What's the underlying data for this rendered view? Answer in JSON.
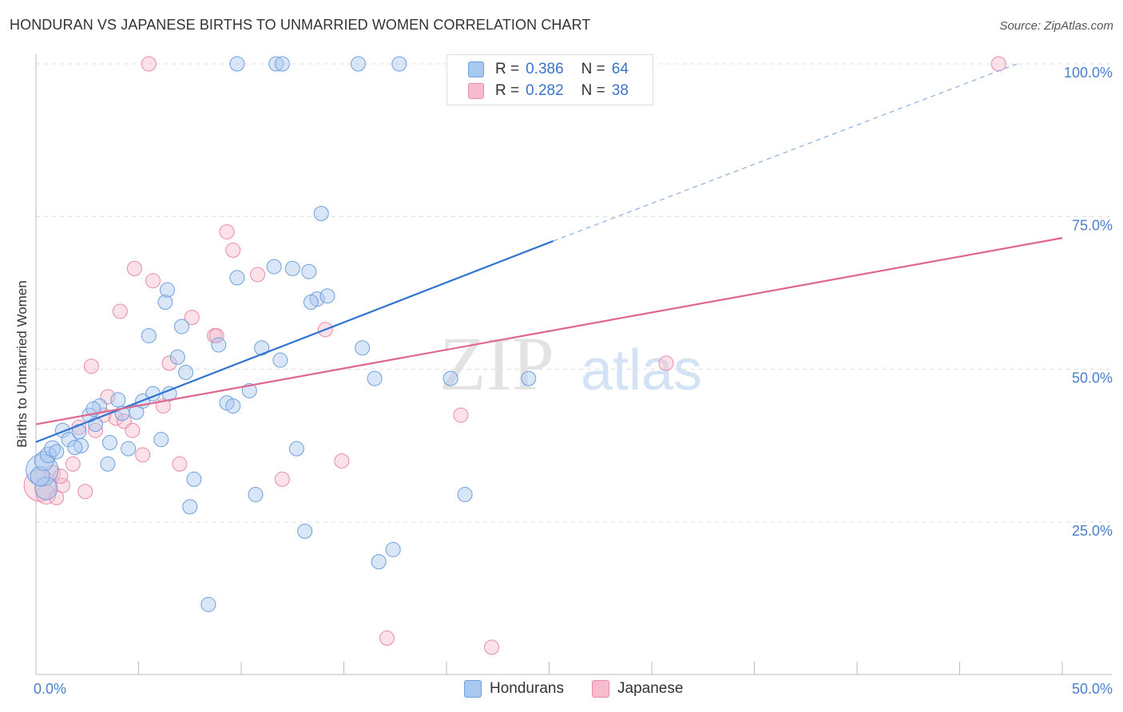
{
  "header": {
    "title": "HONDURAN VS JAPANESE BIRTHS TO UNMARRIED WOMEN CORRELATION CHART",
    "source": "Source: ZipAtlas.com"
  },
  "legend": {
    "rows": [
      {
        "r_label": "R =",
        "r_value": "0.386",
        "n_label": "N =",
        "n_value": "64"
      },
      {
        "r_label": "R =",
        "r_value": "0.282",
        "n_label": "N =",
        "n_value": "38"
      }
    ],
    "series": [
      "Hondurans",
      "Japanese"
    ]
  },
  "watermark": {
    "zip": "ZIP",
    "atlas": "atlas"
  },
  "colors": {
    "hondurans_fill": "#a8c8f0",
    "hondurans_stroke": "#6f9fdc",
    "hondurans_line": "#2f74d0",
    "japanese_fill": "#f6bccd",
    "japanese_stroke": "#e98aa9",
    "japanese_line": "#e0668e",
    "tick_text": "#4a7fcc"
  },
  "chart_data": {
    "type": "scatter",
    "title": "HONDURAN VS JAPANESE BIRTHS TO UNMARRIED WOMEN CORRELATION CHART",
    "xlabel": "",
    "ylabel": "Births to Unmarried Women",
    "xlim": [
      0,
      50
    ],
    "ylim": [
      0,
      105
    ],
    "x_tick_labels": [
      "0.0%",
      "50.0%"
    ],
    "y_ticks": [
      25,
      50,
      75,
      100
    ],
    "y_tick_labels": [
      "25.0%",
      "50.0%",
      "75.0%",
      "100.0%"
    ],
    "grid": true,
    "series": [
      {
        "name": "Hondurans",
        "r": 0.386,
        "n": 64,
        "trend": {
          "x0": 0,
          "y0": 38.1,
          "x1": 25.2,
          "y1": 71.0,
          "dashed_to": {
            "x": 47.8,
            "y": 100.0
          }
        },
        "points": [
          [
            0.3,
            33.5,
            20
          ],
          [
            0.5,
            30.5,
            14
          ],
          [
            0.2,
            32.5,
            12
          ],
          [
            0.4,
            35.0,
            12
          ],
          [
            0.6,
            36.0,
            10
          ],
          [
            0.8,
            37.0,
            10
          ],
          [
            1.0,
            36.5,
            9
          ],
          [
            1.3,
            40.0,
            9
          ],
          [
            1.6,
            38.5,
            9
          ],
          [
            2.2,
            37.5,
            9
          ],
          [
            2.6,
            42.5,
            9
          ],
          [
            2.9,
            41.0,
            9
          ],
          [
            3.1,
            44.0,
            9
          ],
          [
            1.9,
            37.2,
            9
          ],
          [
            2.1,
            39.8,
            9
          ],
          [
            3.6,
            38.0,
            9
          ],
          [
            4.2,
            42.8,
            9
          ],
          [
            4.0,
            45.0,
            9
          ],
          [
            3.5,
            34.5,
            9
          ],
          [
            4.5,
            37.0,
            9
          ],
          [
            4.9,
            43.0,
            9
          ],
          [
            5.2,
            44.8,
            9
          ],
          [
            5.7,
            46.0,
            9
          ],
          [
            6.1,
            38.5,
            9
          ],
          [
            6.5,
            46.0,
            9
          ],
          [
            6.9,
            52.0,
            9
          ],
          [
            7.3,
            49.5,
            9
          ],
          [
            5.5,
            55.5,
            9
          ],
          [
            6.3,
            61.0,
            9
          ],
          [
            6.4,
            63.0,
            9
          ],
          [
            7.1,
            57.0,
            9
          ],
          [
            7.7,
            32.0,
            9
          ],
          [
            7.5,
            27.5,
            9
          ],
          [
            8.4,
            11.5,
            9
          ],
          [
            8.9,
            54.0,
            9
          ],
          [
            9.3,
            44.5,
            9
          ],
          [
            9.6,
            44.0,
            9
          ],
          [
            9.8,
            65.0,
            9
          ],
          [
            10.4,
            46.5,
            9
          ],
          [
            10.7,
            29.5,
            9
          ],
          [
            11.0,
            53.5,
            9
          ],
          [
            11.6,
            66.8,
            9
          ],
          [
            11.9,
            51.5,
            9
          ],
          [
            12.5,
            66.5,
            9
          ],
          [
            12.7,
            37.0,
            9
          ],
          [
            13.1,
            23.5,
            9
          ],
          [
            13.7,
            61.5,
            9
          ],
          [
            13.4,
            61.0,
            9
          ],
          [
            14.2,
            62.0,
            9
          ],
          [
            13.3,
            66.0,
            9
          ],
          [
            13.9,
            75.5,
            9
          ],
          [
            15.9,
            53.5,
            9
          ],
          [
            16.5,
            48.5,
            9
          ],
          [
            16.7,
            18.5,
            9
          ],
          [
            17.4,
            20.5,
            9
          ],
          [
            20.2,
            48.5,
            9
          ],
          [
            20.9,
            29.5,
            9
          ],
          [
            24.0,
            48.5,
            9
          ],
          [
            9.8,
            100.0,
            9
          ],
          [
            11.7,
            100.0,
            9
          ],
          [
            12.0,
            100.0,
            9
          ],
          [
            15.7,
            100.0,
            9
          ],
          [
            17.7,
            100.0,
            9
          ],
          [
            2.8,
            43.5,
            9
          ]
        ]
      },
      {
        "name": "Japanese",
        "r": 0.282,
        "n": 38,
        "trend": {
          "x0": 0,
          "y0": 41.0,
          "x1": 50,
          "y1": 71.5
        },
        "points": [
          [
            0.2,
            31.0,
            20
          ],
          [
            0.5,
            29.5,
            12
          ],
          [
            0.8,
            33.0,
            10
          ],
          [
            1.3,
            31.0,
            9
          ],
          [
            1.0,
            29.0,
            9
          ],
          [
            1.2,
            32.5,
            9
          ],
          [
            1.8,
            34.5,
            9
          ],
          [
            2.4,
            30.0,
            9
          ],
          [
            2.1,
            40.5,
            9
          ],
          [
            2.9,
            40.0,
            9
          ],
          [
            3.5,
            45.5,
            9
          ],
          [
            3.9,
            42.0,
            9
          ],
          [
            4.3,
            41.5,
            9
          ],
          [
            4.7,
            40.0,
            9
          ],
          [
            2.7,
            50.5,
            9
          ],
          [
            4.1,
            59.5,
            9
          ],
          [
            4.8,
            66.5,
            9
          ],
          [
            5.2,
            36.0,
            9
          ],
          [
            5.7,
            64.5,
            9
          ],
          [
            6.2,
            44.0,
            9
          ],
          [
            6.5,
            51.0,
            9
          ],
          [
            7.0,
            34.5,
            9
          ],
          [
            7.6,
            58.5,
            9
          ],
          [
            8.7,
            55.5,
            9
          ],
          [
            9.3,
            72.5,
            9
          ],
          [
            9.6,
            69.5,
            9
          ],
          [
            10.8,
            65.5,
            9
          ],
          [
            12.0,
            32.0,
            9
          ],
          [
            14.1,
            56.5,
            9
          ],
          [
            14.9,
            35.0,
            9
          ],
          [
            17.1,
            6.0,
            9
          ],
          [
            20.7,
            42.5,
            9
          ],
          [
            22.2,
            4.5,
            9
          ],
          [
            30.7,
            51.0,
            9
          ],
          [
            5.5,
            100.0,
            9
          ],
          [
            46.9,
            100.0,
            9
          ],
          [
            3.3,
            42.5,
            9
          ],
          [
            8.8,
            55.5,
            9
          ]
        ]
      }
    ]
  }
}
